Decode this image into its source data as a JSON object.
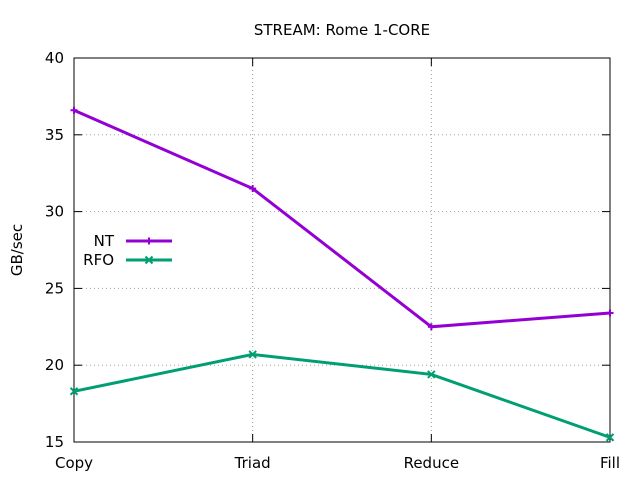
{
  "chart_data": {
    "type": "line",
    "title": "STREAM: Rome 1-CORE",
    "xlabel": "",
    "ylabel": "GB/sec",
    "categories": [
      "Copy",
      "Triad",
      "Reduce",
      "Fill"
    ],
    "ylim": [
      15,
      40
    ],
    "yticks": [
      15,
      20,
      25,
      30,
      35,
      40
    ],
    "grid": true,
    "legend_position": "center-left",
    "series": [
      {
        "name": "NT",
        "color": "#9400d3",
        "marker": "plus",
        "values": [
          36.6,
          31.5,
          22.5,
          23.4
        ]
      },
      {
        "name": "RFO",
        "color": "#009e73",
        "marker": "cross",
        "values": [
          18.3,
          20.7,
          19.4,
          15.3
        ]
      }
    ]
  }
}
